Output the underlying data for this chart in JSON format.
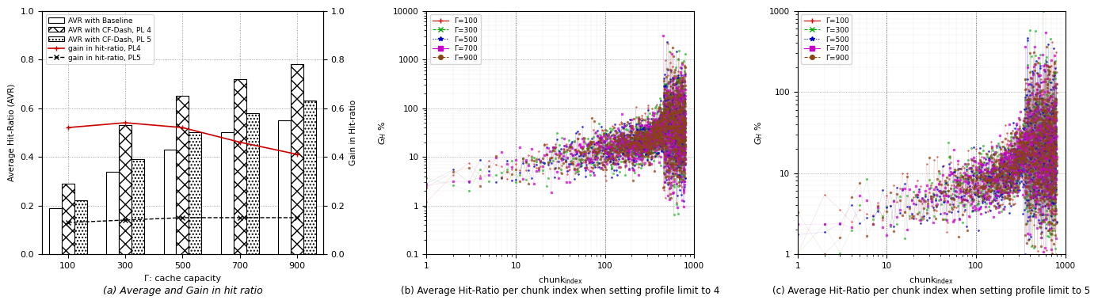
{
  "bar_categories": [
    100,
    300,
    500,
    700,
    900
  ],
  "avr_baseline": [
    0.19,
    0.34,
    0.43,
    0.5,
    0.55
  ],
  "avr_pl4": [
    0.29,
    0.53,
    0.65,
    0.72,
    0.78
  ],
  "avr_pl5": [
    0.22,
    0.39,
    0.5,
    0.58,
    0.63
  ],
  "gain_pl4": [
    0.52,
    0.54,
    0.52,
    0.46,
    0.41
  ],
  "gain_pl5": [
    0.13,
    0.14,
    0.15,
    0.15,
    0.15
  ],
  "bar_width": 0.22,
  "ylabel_left": "Average Hit-Ratio (AVR)",
  "ylabel_right": "Gain in Hit-ratio",
  "xlabel_a": "Γ: cache capacity",
  "caption_a": "(a) Average and Gain in hit ratio",
  "caption_b": "(b) Average Hit-Ratio per chunk index when setting profile limit to 4",
  "caption_c": "(c) Average Hit-Ratio per chunk index when setting profile limit to 5",
  "legend_labels": [
    "AVR with Baseline",
    "AVR with CF-Dash, PL 4",
    "AVR with CF-Dash, PL 5",
    "gain in hit-ratio, PL4",
    "gain in hit-ratio, PL5"
  ],
  "gamma_colors": [
    "#cc0000",
    "#00aa00",
    "#0000cc",
    "#cc00cc",
    "#8B4513"
  ],
  "gamma_values": [
    100,
    300,
    500,
    700,
    900
  ],
  "gamma_markers": [
    "+",
    "x",
    "*",
    "s",
    "o"
  ],
  "gamma_linestyles": [
    "-",
    "--",
    ":",
    "-",
    "--"
  ],
  "background_color": "#ffffff",
  "grid_color": "#888888"
}
